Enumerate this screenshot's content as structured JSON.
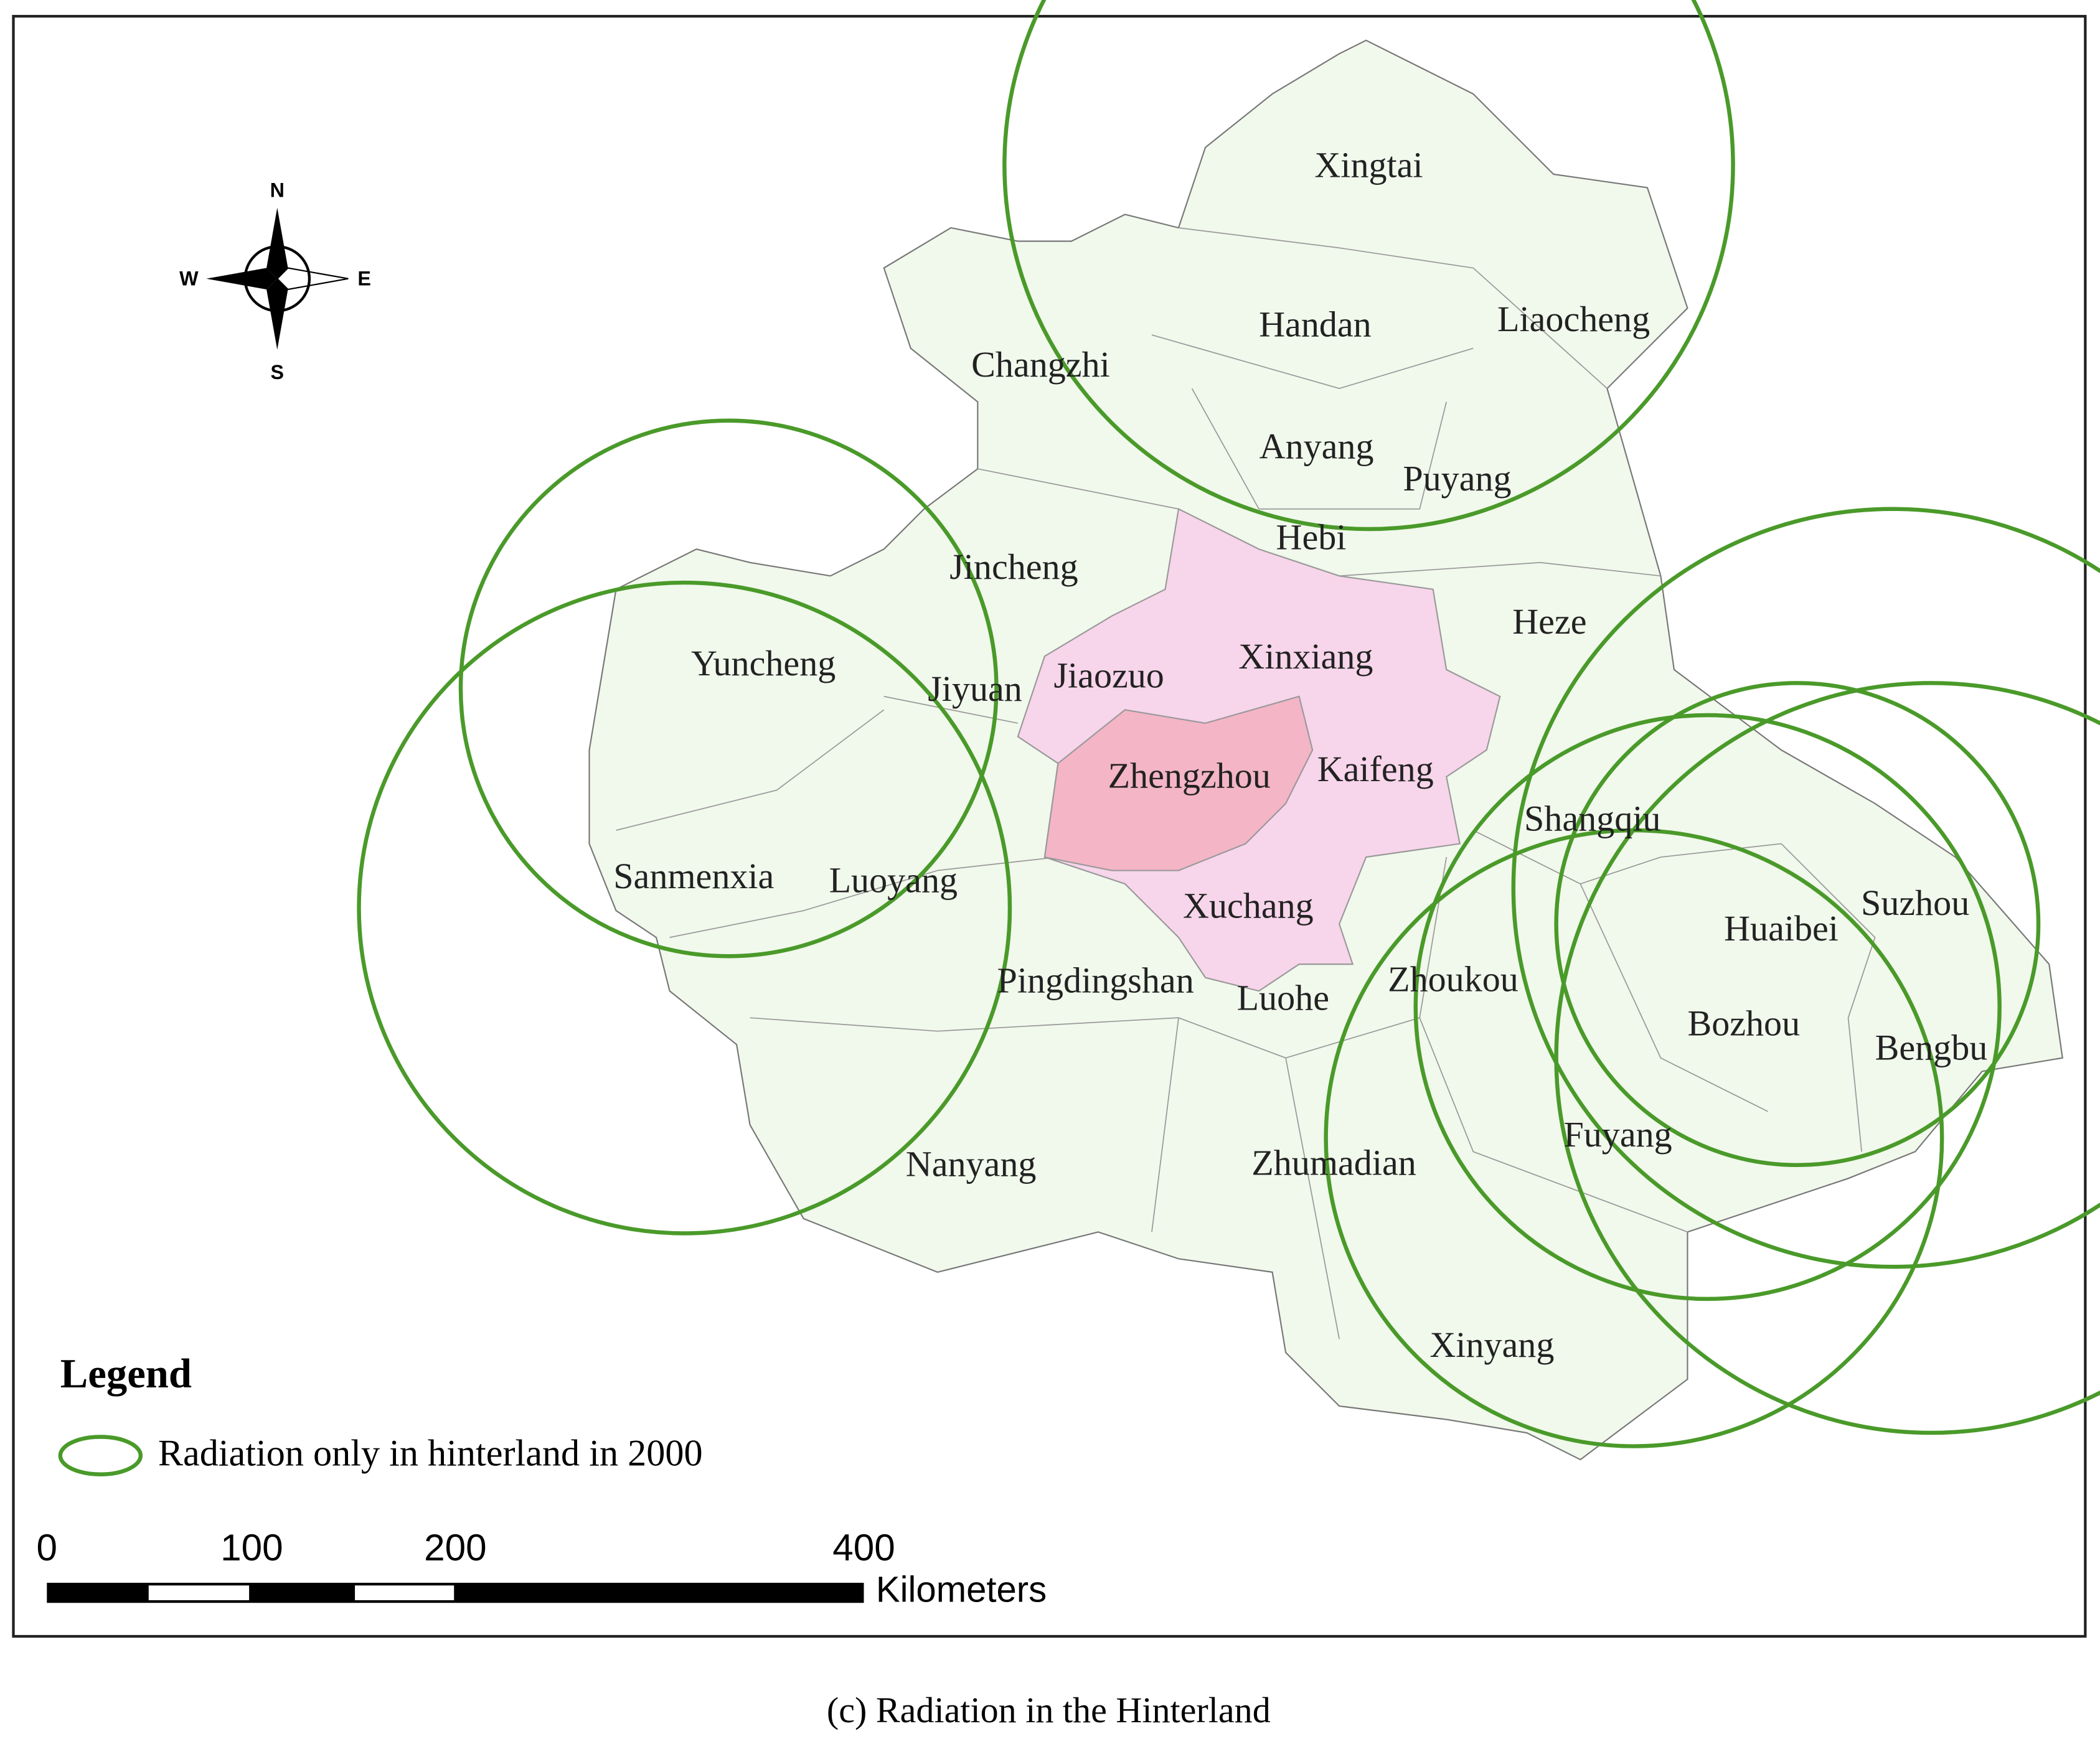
{
  "compass": {
    "north": "N",
    "south": "S",
    "east": "E",
    "west": "W"
  },
  "map": {
    "labels": [
      "Xingtai",
      "Handan",
      "Liaocheng",
      "Changzhi",
      "Anyang",
      "Puyang",
      "Hebi",
      "Jincheng",
      "Heze",
      "Yuncheng",
      "Xinxiang",
      "Jiaozuo",
      "Jiyuan",
      "Zhengzhou",
      "Kaifeng",
      "Shangqiu",
      "Sanmenxia",
      "Luoyang",
      "Suzhou",
      "Xuchang",
      "Huaibei",
      "Pingdingshan",
      "Zhoukou",
      "Luohe",
      "Bozhou",
      "Bengbu",
      "Fuyang",
      "Nanyang",
      "Zhumadian",
      "Xinyang"
    ]
  },
  "legend": {
    "title": "Legend",
    "items": [
      "Radiation only in hinterland in 2000"
    ]
  },
  "scale_bar": {
    "ticks": [
      0,
      100,
      200,
      400
    ],
    "unit": "Kilometers"
  },
  "caption": "(c) Radiation in the Hinterland"
}
